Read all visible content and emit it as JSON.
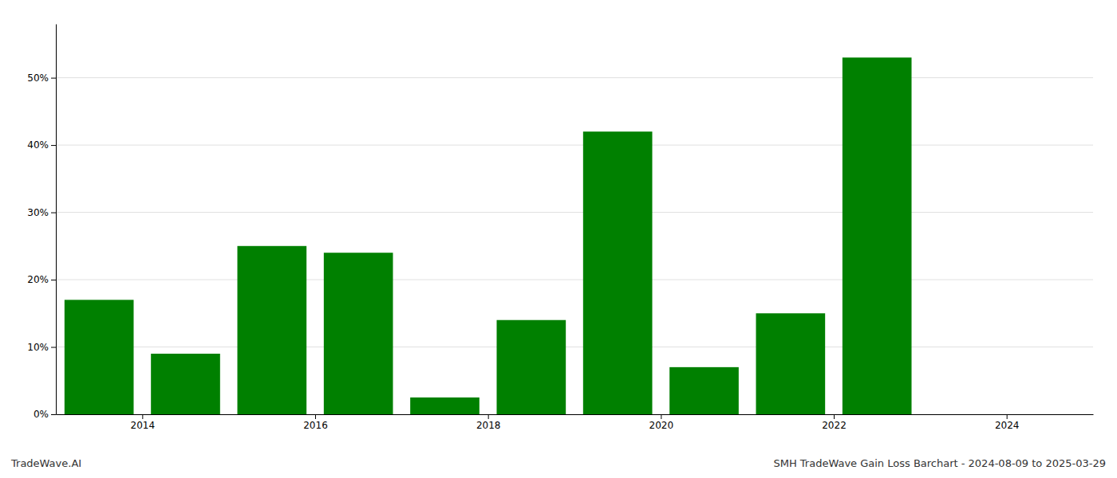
{
  "chart_data": {
    "type": "bar",
    "x": [
      2013.5,
      2014.5,
      2015.5,
      2016.5,
      2017.5,
      2018.5,
      2019.5,
      2020.5,
      2021.5,
      2022.5
    ],
    "values": [
      0.17,
      0.09,
      0.25,
      0.24,
      0.025,
      0.14,
      0.42,
      0.07,
      0.15,
      0.53
    ],
    "color": "#008000",
    "xlim": [
      2013.0,
      2025.0
    ],
    "xticks": [
      2014,
      2016,
      2018,
      2020,
      2022,
      2024
    ],
    "ylim": [
      0,
      0.58
    ],
    "yticks": [
      {
        "value": 0.0,
        "label": "0%"
      },
      {
        "value": 0.1,
        "label": "10%"
      },
      {
        "value": 0.2,
        "label": "20%"
      },
      {
        "value": 0.3,
        "label": "30%"
      },
      {
        "value": 0.4,
        "label": "40%"
      },
      {
        "value": 0.5,
        "label": "50%"
      }
    ],
    "grid": true,
    "annotations": [
      "TradeWave.AI",
      "SMH TradeWave Gain Loss Barchart - 2024-08-09 to 2025-03-29"
    ]
  }
}
